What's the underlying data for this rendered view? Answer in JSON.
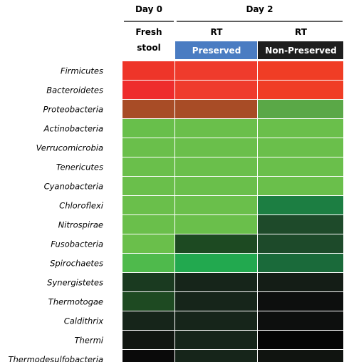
{
  "chart_data": {
    "type": "heatmap",
    "groups": [
      {
        "label": "Day 0",
        "columns": [
          0
        ]
      },
      {
        "label": "Day 2",
        "columns": [
          1,
          2
        ]
      }
    ],
    "columns": [
      {
        "top_label": "Fresh",
        "sub_label": "stool",
        "band_label": "",
        "band_color": ""
      },
      {
        "top_label": "RT",
        "sub_label": "",
        "band_label": "Preserved",
        "band_color": "#4a7cc2"
      },
      {
        "top_label": "RT",
        "sub_label": "",
        "band_label": "Non-Preserved",
        "band_color": "#1e1e1e"
      }
    ],
    "rows": [
      "Firmicutes",
      "Bacteroidetes",
      "Proteobacteria",
      "Actinobacteria",
      "Verrucomicrobia",
      "Tenericutes",
      "Cyanobacteria",
      "Chloroflexi",
      "Nitrospirae",
      "Fusobacteria",
      "Spirochaetes",
      "Synergistetes",
      "Thermotogae",
      "Caldithrix",
      "Thermi",
      "Thermodesulfobacteria"
    ],
    "cell_colors": [
      [
        "#ee3529",
        "#ef3b2c",
        "#f03d25"
      ],
      [
        "#ee2c2c",
        "#ef3b2c",
        "#f03d25"
      ],
      [
        "#a84c26",
        "#a84c26",
        "#5aa847"
      ],
      [
        "#68bf4b",
        "#6abf4b",
        "#6abf4b"
      ],
      [
        "#6abf4b",
        "#6abf4b",
        "#6abf4b"
      ],
      [
        "#6abf4b",
        "#6abf4b",
        "#6abf4b"
      ],
      [
        "#6abf4b",
        "#6abf4b",
        "#6abf4b"
      ],
      [
        "#6abf4b",
        "#6abf4b",
        "#1c7e42"
      ],
      [
        "#6abf4b",
        "#6abf4b",
        "#1e4a2a"
      ],
      [
        "#6abf4b",
        "#1d4a22",
        "#1d4a2a"
      ],
      [
        "#4fba4c",
        "#22a94f",
        "#1a6a3a"
      ],
      [
        "#1a3a20",
        "#16251a",
        "#141d16"
      ],
      [
        "#1e4a22",
        "#16251a",
        "#0d0f0e"
      ],
      [
        "#16251a",
        "#16251a",
        "#0d0f0e"
      ],
      [
        "#111611",
        "#16251a",
        "#050505"
      ],
      [
        "#0a0a0a",
        "#16251a",
        "#101410"
      ]
    ]
  }
}
